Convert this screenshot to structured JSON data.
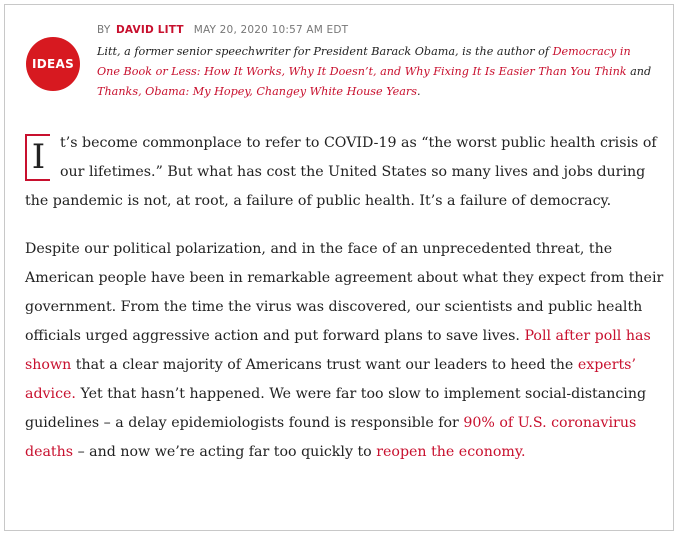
{
  "header": {
    "section_badge": "IDEAS",
    "by_label": "BY",
    "author": "DAVID LITT",
    "timestamp": "MAY 20, 2020 10:57 AM EDT"
  },
  "bio": {
    "part1": "Litt, a former senior speechwriter for President Barack Obama, is the author of ",
    "book1": "Democracy in One Book or Less: How It Works, Why It Doesn’t, and Why Fixing It Is Easier Than You Think",
    "part2": " and ",
    "book2": "Thanks, Obama: My Hopey, Changey White House Years",
    "part3": "."
  },
  "article": {
    "p1": {
      "dropcap": "I",
      "text": "t’s become commonplace to refer to COVID-19 as “the worst public health crisis of our lifetimes.” But what has cost the United States so many lives and jobs during the pandemic is not, at root, a failure of public health. It’s a failure of democracy."
    },
    "p2": {
      "t1": "Despite our political polarization, and in the face of an unprecedented threat, the American people have been in remarkable agreement about what they expect from their government. From the time the virus was discovered, our scientists and public health officials urged aggressive action and put forward plans to save lives. ",
      "link1": "Poll after poll has shown",
      "t2": " that a clear majority of Americans trust want our leaders to heed the ",
      "link2": "experts’ advice.",
      "t3": " Yet that hasn’t happened. We were far too slow to implement social-distancing guidelines – a delay epidemiologists found is responsible for ",
      "link3": "90% of U.S. coronavirus deaths",
      "t4": " – and now we’re acting far too quickly to ",
      "link4": "reopen the economy.",
      "t5": ""
    }
  },
  "colors": {
    "accent": "#c8102e",
    "badge": "#d71920",
    "text": "#222222",
    "meta": "#777777"
  }
}
